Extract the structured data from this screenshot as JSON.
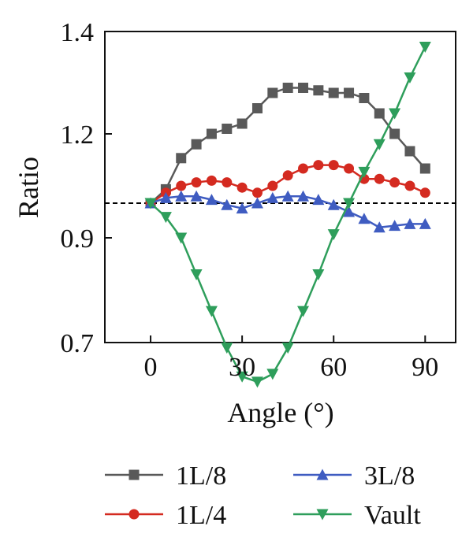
{
  "chart_data": {
    "type": "line",
    "title": "",
    "xlabel": "Angle (°)",
    "ylabel": "Ratio",
    "xlim": [
      -15,
      100
    ],
    "ylim": [
      0.7,
      1.4
    ],
    "xticks": [
      0,
      30,
      60,
      90
    ],
    "yticks": [
      0.7,
      0.9,
      1.2,
      1.4
    ],
    "xtick_labels": [
      "0",
      "30",
      "60",
      "90"
    ],
    "ytick_labels": [
      "0.7",
      "0.9",
      "1.2",
      "1.4"
    ],
    "grid": false,
    "reference_line": {
      "y": 1.0,
      "style": "dashed",
      "color": "#000000"
    },
    "legend": {
      "placement": "bottom",
      "columns": 2
    },
    "x": [
      0,
      5,
      10,
      15,
      20,
      25,
      30,
      35,
      40,
      45,
      50,
      55,
      60,
      65,
      70,
      75,
      80,
      85,
      90
    ],
    "series": [
      {
        "name": "1L/8",
        "color": "#595959",
        "marker": "square",
        "values": [
          1.0,
          1.04,
          1.13,
          1.17,
          1.2,
          1.21,
          1.22,
          1.25,
          1.28,
          1.29,
          1.29,
          1.285,
          1.28,
          1.28,
          1.27,
          1.24,
          1.2,
          1.15,
          1.1
        ]
      },
      {
        "name": "1L/4",
        "color": "#d42a20",
        "marker": "circle",
        "values": [
          1.0,
          1.03,
          1.05,
          1.06,
          1.065,
          1.06,
          1.045,
          1.03,
          1.05,
          1.08,
          1.1,
          1.11,
          1.11,
          1.1,
          1.07,
          1.07,
          1.06,
          1.05,
          1.03
        ]
      },
      {
        "name": "3L/8",
        "color": "#3f5cc1",
        "marker": "triangle-up",
        "values": [
          1.0,
          1.015,
          1.02,
          1.02,
          1.01,
          0.995,
          0.985,
          1.0,
          1.015,
          1.02,
          1.02,
          1.01,
          0.995,
          0.975,
          0.955,
          0.93,
          0.935,
          0.94,
          0.94
        ]
      },
      {
        "name": "Vault",
        "color": "#2e9e5b",
        "marker": "triangle-down",
        "values": [
          1.0,
          0.96,
          0.9,
          0.83,
          0.76,
          0.69,
          0.635,
          0.625,
          0.64,
          0.69,
          0.76,
          0.83,
          0.91,
          1.0,
          1.09,
          1.17,
          1.24,
          1.31,
          1.37
        ]
      }
    ]
  }
}
